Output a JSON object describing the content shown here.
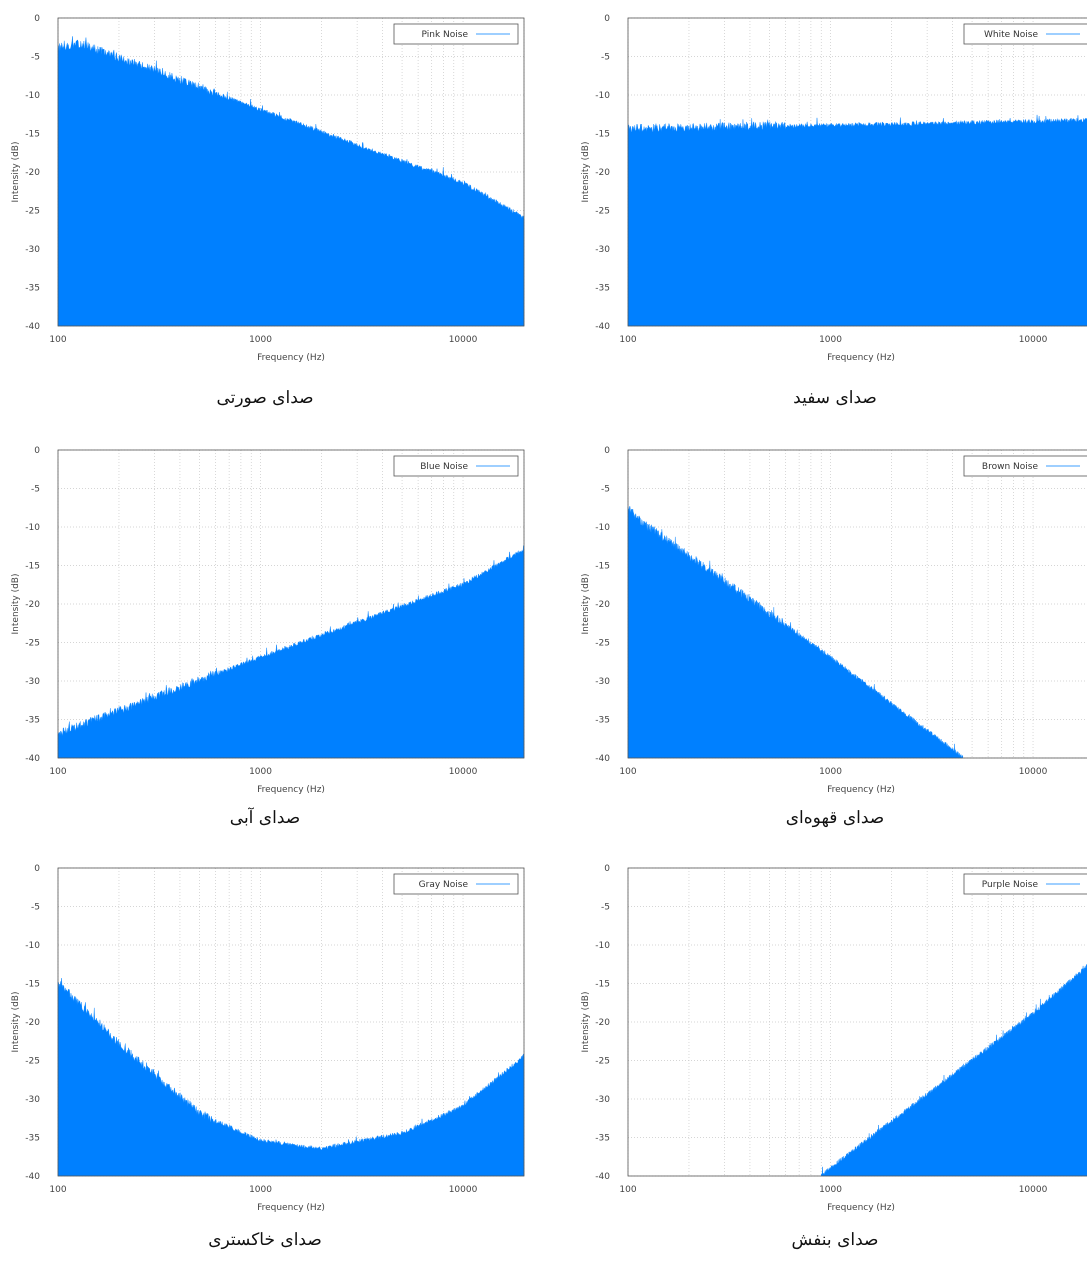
{
  "chart_data": [
    {
      "type": "area",
      "xscale": "log",
      "xlim": [
        100,
        20000
      ],
      "ylim": [
        -40,
        0
      ],
      "xticks": [
        "100",
        "1000",
        "10000"
      ],
      "yticks": [
        "0",
        "-5",
        "-10",
        "-15",
        "-20",
        "-25",
        "-30",
        "-35",
        "-40"
      ],
      "xlabel": "Frequency (Hz)",
      "ylabel": "Intensity (dB)",
      "grid": true,
      "legend_position": "top-right",
      "series": [
        {
          "name": "Pink Noise",
          "color": "#0080ff",
          "x": [
            100,
            130,
            1000,
            10000,
            20000
          ],
          "y": [
            -4,
            -3.5,
            -12,
            -21.5,
            -26
          ]
        }
      ],
      "caption": "صدای صورتی"
    },
    {
      "type": "area",
      "xscale": "log",
      "xlim": [
        100,
        20000
      ],
      "ylim": [
        -40,
        0
      ],
      "xticks": [
        "100",
        "1000",
        "10000"
      ],
      "yticks": [
        "0",
        "-5",
        "-10",
        "-15",
        "-20",
        "-25",
        "-30",
        "-35",
        "-40"
      ],
      "xlabel": "Frequency (Hz)",
      "ylabel": "Intensity (dB)",
      "grid": true,
      "legend_position": "top-right",
      "series": [
        {
          "name": "White Noise",
          "color": "#0080ff",
          "x": [
            100,
            1000,
            10000,
            20000
          ],
          "y": [
            -14.5,
            -14,
            -13.5,
            -13.3
          ]
        }
      ],
      "caption": "صدای سفید"
    },
    {
      "type": "area",
      "xscale": "log",
      "xlim": [
        100,
        20000
      ],
      "ylim": [
        -40,
        0
      ],
      "xticks": [
        "100",
        "1000",
        "10000"
      ],
      "yticks": [
        "0",
        "-5",
        "-10",
        "-15",
        "-20",
        "-25",
        "-30",
        "-35",
        "-40"
      ],
      "xlabel": "Frequency (Hz)",
      "ylabel": "Intensity (dB)",
      "grid": true,
      "legend_position": "top-right",
      "series": [
        {
          "name": "Blue Noise",
          "color": "#0080ff",
          "x": [
            100,
            1000,
            10000,
            20000
          ],
          "y": [
            -37,
            -27,
            -17.5,
            -13
          ]
        }
      ],
      "caption": "صدای آبی"
    },
    {
      "type": "area",
      "xscale": "log",
      "xlim": [
        100,
        20000
      ],
      "ylim": [
        -40,
        0
      ],
      "xticks": [
        "100",
        "1000",
        "10000"
      ],
      "yticks": [
        "0",
        "-5",
        "-10",
        "-15",
        "-20",
        "-25",
        "-30",
        "-35",
        "-40"
      ],
      "xlabel": "Frequency (Hz)",
      "ylabel": "Intensity (dB)",
      "grid": true,
      "legend_position": "top-right",
      "series": [
        {
          "name": "Brown Noise",
          "color": "#0080ff",
          "x": [
            100,
            110,
            1000,
            4500
          ],
          "y": [
            -7.5,
            -9,
            -27,
            -40
          ]
        }
      ],
      "caption": "صدای قهوه‌ای"
    },
    {
      "type": "area",
      "xscale": "log",
      "xlim": [
        100,
        20000
      ],
      "ylim": [
        -40,
        0
      ],
      "xticks": [
        "100",
        "1000",
        "10000"
      ],
      "yticks": [
        "0",
        "-5",
        "-10",
        "-15",
        "-20",
        "-25",
        "-30",
        "-35",
        "-40"
      ],
      "xlabel": "Frequency (Hz)",
      "ylabel": "Intensity (dB)",
      "grid": true,
      "legend_position": "top-right",
      "series": [
        {
          "name": "Gray Noise",
          "color": "#0080ff",
          "x": [
            100,
            200,
            500,
            1000,
            2000,
            5000,
            10000,
            20000
          ],
          "y": [
            -15,
            -23,
            -32,
            -35.5,
            -36.5,
            -34.5,
            -31,
            -24.5
          ]
        }
      ],
      "caption": "صدای خاکستری"
    },
    {
      "type": "area",
      "xscale": "log",
      "xlim": [
        100,
        20000
      ],
      "ylim": [
        -40,
        0
      ],
      "xticks": [
        "100",
        "1000",
        "10000"
      ],
      "yticks": [
        "0",
        "-5",
        "-10",
        "-15",
        "-20",
        "-25",
        "-30",
        "-35",
        "-40"
      ],
      "xlabel": "Frequency (Hz)",
      "ylabel": "Intensity (dB)",
      "grid": true,
      "legend_position": "top-right",
      "series": [
        {
          "name": "Purple Noise",
          "color": "#0080ff",
          "x": [
            900,
            1000,
            10000,
            20000
          ],
          "y": [
            -40,
            -39,
            -19,
            -12
          ]
        }
      ],
      "caption": "صدای بنفش"
    }
  ]
}
